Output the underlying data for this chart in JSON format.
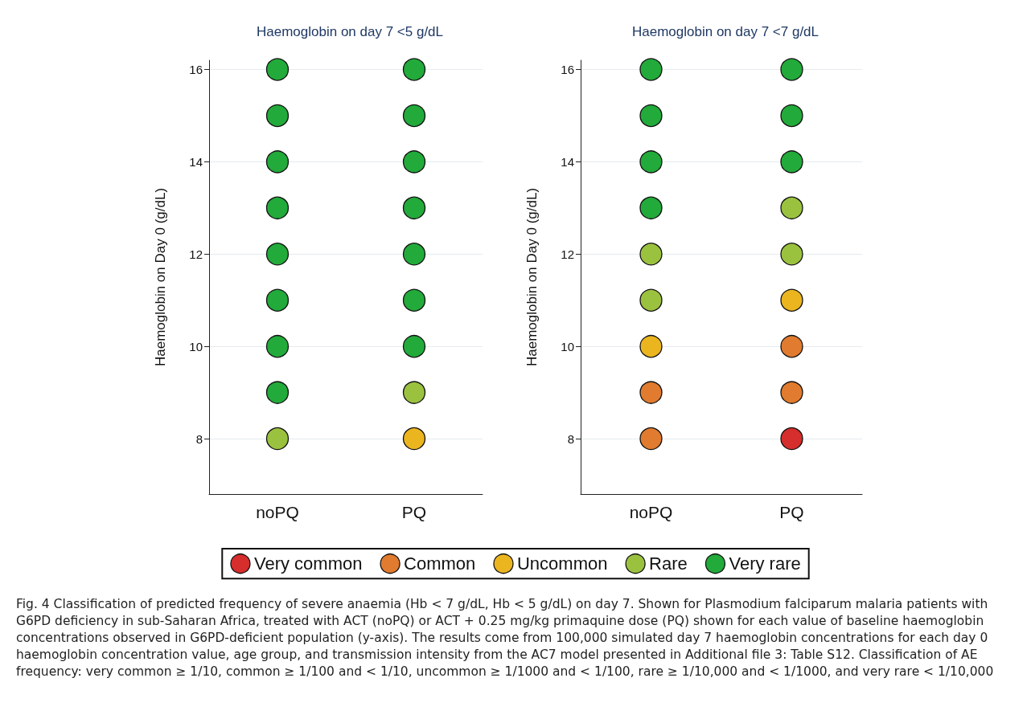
{
  "chart_data": [
    {
      "type": "scatter",
      "title": "Haemoglobin on day 7 <5 g/dL",
      "ylabel": "Haemoglobin on Day 0 (g/dL)",
      "categories": [
        "noPQ",
        "PQ"
      ],
      "ylim": [
        6.8,
        16.2
      ],
      "yticks": [
        8,
        10,
        12,
        14,
        16
      ],
      "grid": "y",
      "marker": "circle",
      "legend": false,
      "series": [
        {
          "color": "#ebb51f",
          "x": [
            "PQ"
          ],
          "values": [
            8
          ]
        },
        {
          "color": "#9bc23f",
          "x": [
            "noPQ",
            "PQ"
          ],
          "values": [
            8,
            9
          ]
        },
        {
          "color": "#22aa3a",
          "x": [
            "noPQ",
            "noPQ",
            "noPQ",
            "noPQ",
            "noPQ",
            "noPQ",
            "noPQ",
            "noPQ",
            "PQ",
            "PQ",
            "PQ",
            "PQ",
            "PQ",
            "PQ",
            "PQ"
          ],
          "values": [
            9,
            10,
            11,
            12,
            13,
            14,
            15,
            16,
            10,
            11,
            12,
            13,
            14,
            15,
            16
          ]
        }
      ]
    },
    {
      "type": "scatter",
      "title": "Haemoglobin on day 7 <7 g/dL",
      "ylabel": "Haemoglobin on Day 0 (g/dL)",
      "categories": [
        "noPQ",
        "PQ"
      ],
      "ylim": [
        6.8,
        16.2
      ],
      "yticks": [
        8,
        10,
        12,
        14,
        16
      ],
      "grid": "y",
      "marker": "circle",
      "legend": "bottom",
      "series": [
        {
          "name": "Very common",
          "color": "#d62d2d",
          "x": [
            "PQ"
          ],
          "values": [
            8
          ]
        },
        {
          "name": "Common",
          "color": "#e07b2f",
          "x": [
            "noPQ",
            "noPQ",
            "PQ",
            "PQ"
          ],
          "values": [
            8,
            9,
            9,
            10
          ]
        },
        {
          "name": "Uncommon",
          "color": "#ebb51f",
          "x": [
            "noPQ",
            "PQ"
          ],
          "values": [
            10,
            11
          ]
        },
        {
          "name": "Rare",
          "color": "#9bc23f",
          "x": [
            "noPQ",
            "noPQ",
            "PQ",
            "PQ"
          ],
          "values": [
            11,
            12,
            12,
            13
          ]
        },
        {
          "name": "Very rare",
          "color": "#22aa3a",
          "x": [
            "noPQ",
            "noPQ",
            "noPQ",
            "noPQ",
            "PQ",
            "PQ",
            "PQ"
          ],
          "values": [
            13,
            14,
            15,
            16,
            14,
            15,
            16
          ]
        }
      ],
      "annotations": [
        "Fig. 4  Classification of predicted frequency of severe anaemia (Hb < 7 g/dL, Hb < 5 g/dL) on day 7. Shown for Plasmodium falciparum malaria patients with G6PD deficiency in sub-Saharan Africa, treated with ACT (noPQ) or ACT + 0.25 mg/kg primaquine dose (PQ) shown for each value of baseline haemoglobin concentrations observed in G6PD-deficient population (y-axis). The results come from 100,000 simulated day 7 haemoglobin concentrations for each day 0 haemoglobin concentration value, age group, and transmission intensity from the AC7 model presented in Additional file 3: Table S12. Classification of AE frequency: very common ≥ 1/10, common ≥ 1/100 and < 1/10, uncommon ≥ 1/1000 and < 1/100, rare ≥ 1/10,000 and < 1/1000, and very rare < 1/10,000"
      ]
    }
  ]
}
